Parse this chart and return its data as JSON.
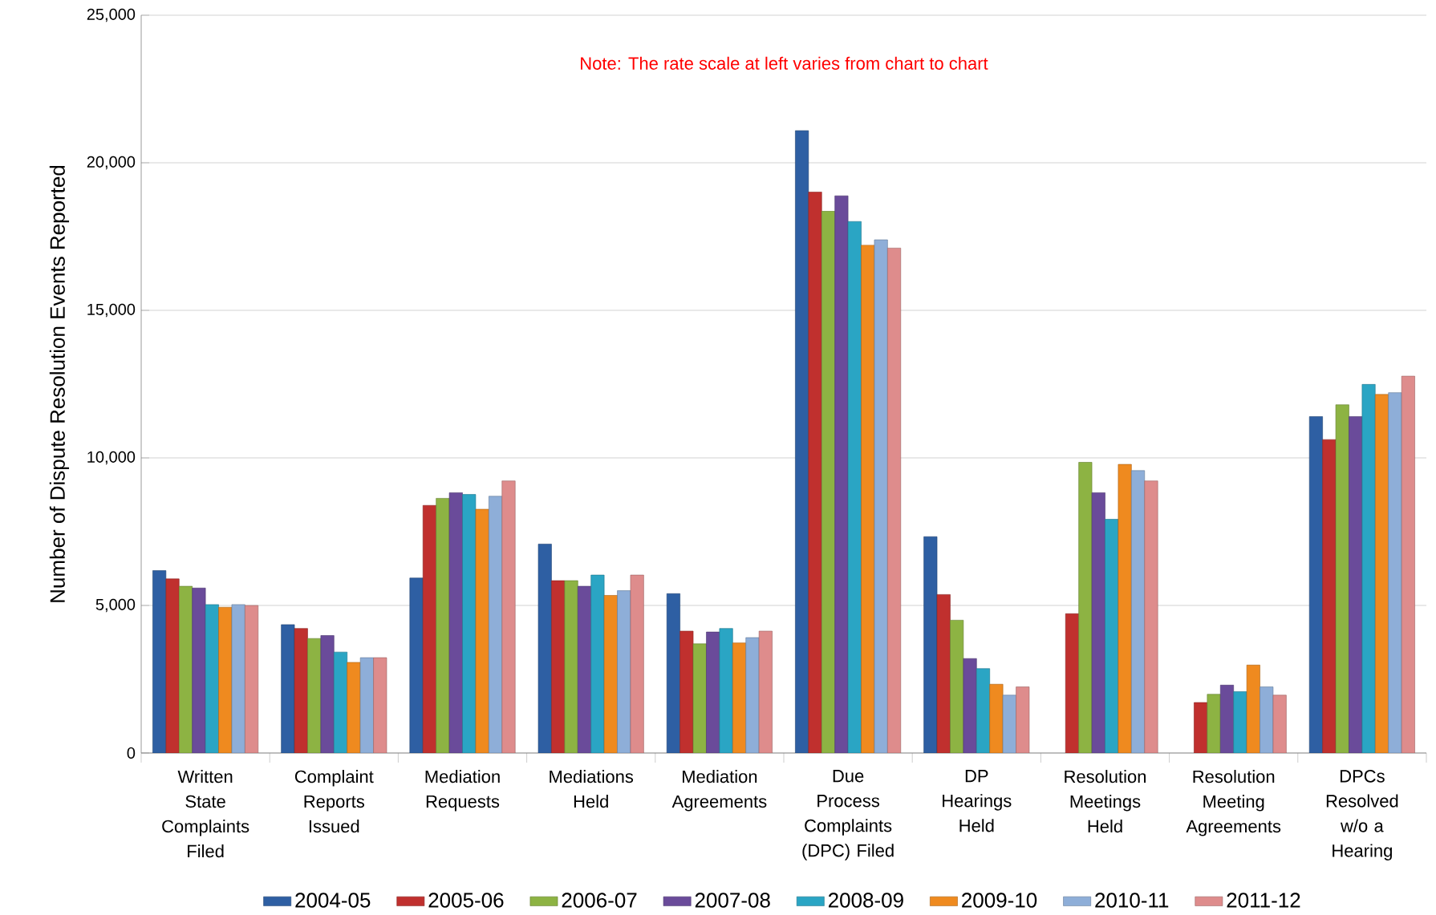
{
  "chart_data": {
    "type": "bar",
    "ylabel": "Number of Dispute Resolution Events Reported",
    "annotations": [
      "Note:  The rate scale at left varies from chart to chart"
    ],
    "categories": [
      "Written State Complaints Filed",
      "Complaint Reports Issued",
      "Mediation Requests",
      "Mediations Held",
      "Mediation Agreements",
      "Due Process Complaints (DPC) Filed",
      "DP Hearings Held",
      "Resolution Meetings Held",
      "Resolution Meeting Agreements",
      "DPCs Resolved w/o a Hearing"
    ],
    "series": [
      {
        "name": "2004-05",
        "color": "#2e5fa3",
        "values": [
          6180,
          4350,
          5930,
          7080,
          5400,
          21090,
          7330,
          null,
          null,
          11400
        ]
      },
      {
        "name": "2005-06",
        "color": "#c0302e",
        "values": [
          5900,
          4220,
          8390,
          5840,
          4130,
          19010,
          5370,
          4720,
          1710,
          10620
        ]
      },
      {
        "name": "2006-07",
        "color": "#8db343",
        "values": [
          5650,
          3880,
          8630,
          5840,
          3700,
          18360,
          4500,
          9850,
          1990,
          11800
        ]
      },
      {
        "name": "2007-08",
        "color": "#6a4b9a",
        "values": [
          5590,
          3980,
          8820,
          5650,
          4100,
          18880,
          3200,
          8820,
          2300,
          11400
        ]
      },
      {
        "name": "2008-09",
        "color": "#2aa5c4",
        "values": [
          5030,
          3420,
          8760,
          6030,
          4220,
          18010,
          2860,
          7920,
          2080,
          12490
        ]
      },
      {
        "name": "2009-10",
        "color": "#ef8a1f",
        "values": [
          4940,
          3070,
          8260,
          5340,
          3730,
          17210,
          2330,
          9780,
          2980,
          12150
        ]
      },
      {
        "name": "2010-11",
        "color": "#8eaed8",
        "values": [
          5030,
          3230,
          8700,
          5500,
          3910,
          17390,
          1960,
          9570,
          2240,
          12210
        ]
      },
      {
        "name": "2011-12",
        "color": "#de8c8c",
        "values": [
          5000,
          3230,
          9220,
          6030,
          4130,
          17110,
          2240,
          9220,
          1960,
          12770
        ]
      }
    ],
    "ylim": [
      0,
      25000
    ],
    "yticks": [
      {
        "value": 0,
        "label": "0"
      },
      {
        "value": 5000,
        "label": "5,000"
      },
      {
        "value": 10000,
        "label": "10,000"
      },
      {
        "value": 15000,
        "label": "15,000"
      },
      {
        "value": 20000,
        "label": "20,000"
      },
      {
        "value": 25000,
        "label": "25,000"
      }
    ],
    "grid": "y",
    "legend": "bottom"
  }
}
